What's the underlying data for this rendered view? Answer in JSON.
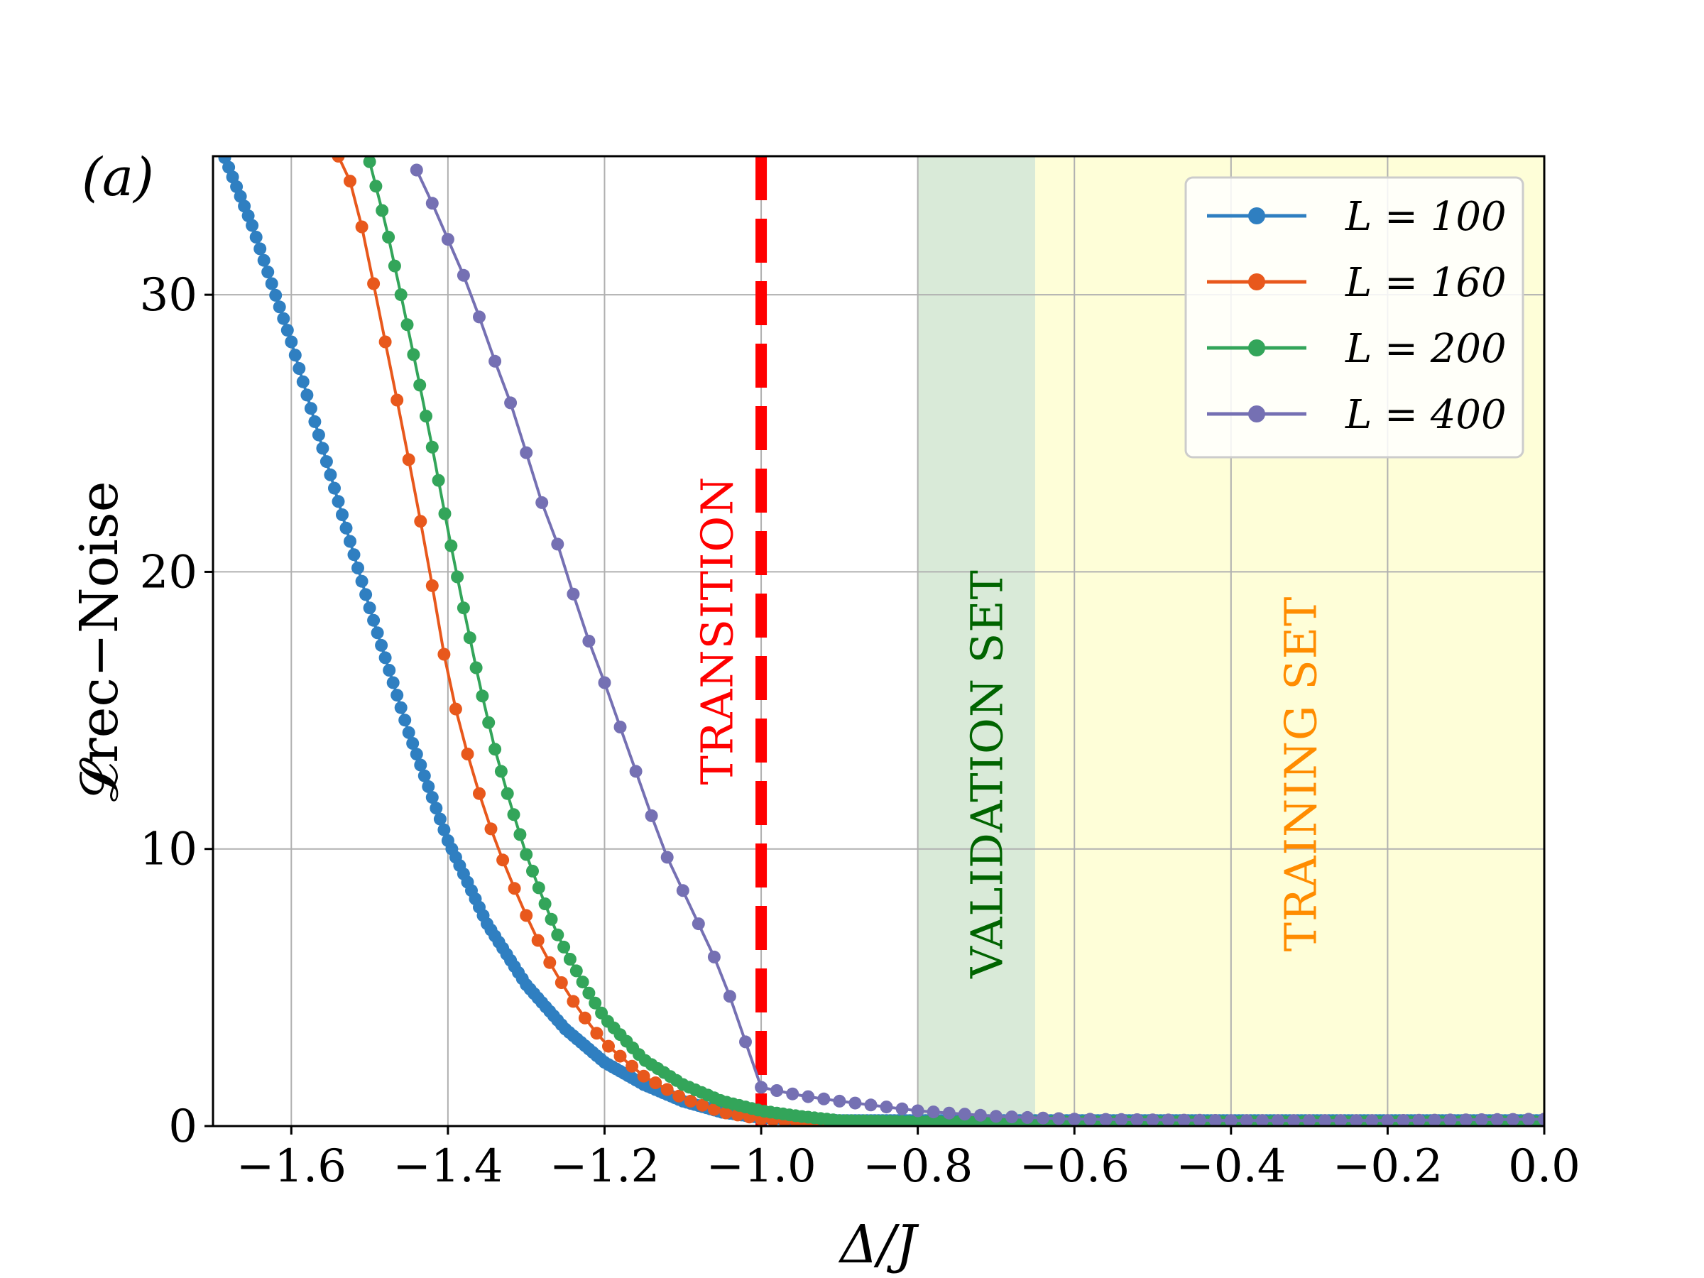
{
  "chart_data": {
    "type": "line",
    "panel_label": "(a)",
    "xlabel": "Δ/J",
    "ylabel": "𝓛rec−Noise",
    "xlim": [
      -1.7,
      0.0
    ],
    "ylim": [
      0,
      35
    ],
    "grid": true,
    "x_ticks": [
      -1.6,
      -1.4,
      -1.2,
      -1.0,
      -0.8,
      -0.6,
      -0.4,
      -0.2,
      0.0
    ],
    "x_tick_labels": [
      "−1.6",
      "−1.4",
      "−1.2",
      "−1.0",
      "−0.8",
      "−0.6",
      "−0.4",
      "−0.2",
      "0.0"
    ],
    "y_ticks": [
      0,
      10,
      20,
      30
    ],
    "y_tick_labels": [
      "0",
      "10",
      "20",
      "30"
    ],
    "transition": {
      "x": -1.0,
      "label": "TRANSITION",
      "color": "#ff0000"
    },
    "regions": [
      {
        "label": "VALIDATION SET",
        "x0": -0.8,
        "x1": -0.65,
        "fill": "#d9ead8",
        "text_color": "#006400"
      },
      {
        "label": "TRAINING SET",
        "x0": -0.65,
        "x1": 0.0,
        "fill": "#fefed8",
        "text_color": "#ff8c00"
      }
    ],
    "legend_position": "top-right",
    "series": [
      {
        "name": "L = 100",
        "color": "#2f7fc1",
        "step": 0.005,
        "x": [
          -1.7,
          -1.65,
          -1.6,
          -1.55,
          -1.5,
          -1.45,
          -1.4,
          -1.35,
          -1.3,
          -1.25,
          -1.2,
          -1.15,
          -1.1,
          -1.05,
          -1.0,
          -0.9,
          -0.8,
          -0.7,
          -0.6,
          -0.4,
          -0.2,
          0.0
        ],
        "y": [
          36,
          32.5,
          28.3,
          23.5,
          18.7,
          14.2,
          10.3,
          7.3,
          5.1,
          3.5,
          2.3,
          1.5,
          0.9,
          0.5,
          0.3,
          0.2,
          0.2,
          0.2,
          0.2,
          0.2,
          0.2,
          0.2
        ]
      },
      {
        "name": "L = 160",
        "color": "#e8581c",
        "step": 0.015,
        "x": [
          -1.54,
          -1.52,
          -1.5,
          -1.48,
          -1.46,
          -1.44,
          -1.42,
          -1.4,
          -1.38,
          -1.36,
          -1.34,
          -1.32,
          -1.3,
          -1.28,
          -1.26,
          -1.24,
          -1.22,
          -1.2,
          -1.15,
          -1.1,
          -1.05,
          -1.0,
          -0.95,
          -0.9,
          -0.8,
          -0.6,
          0.0
        ],
        "y": [
          35,
          33.8,
          31.1,
          28.3,
          25.5,
          22.6,
          19.5,
          16.2,
          13.9,
          12.0,
          10.3,
          8.9,
          7.6,
          6.4,
          5.4,
          4.5,
          3.7,
          3.0,
          1.8,
          1.0,
          0.5,
          0.25,
          0.15,
          0.1,
          0.1,
          0.1,
          0.1
        ]
      },
      {
        "name": "L = 200",
        "color": "#33a55a",
        "step": 0.008,
        "x": [
          -1.5,
          -1.48,
          -1.46,
          -1.44,
          -1.42,
          -1.4,
          -1.38,
          -1.36,
          -1.34,
          -1.32,
          -1.3,
          -1.28,
          -1.26,
          -1.24,
          -1.22,
          -1.2,
          -1.15,
          -1.1,
          -1.05,
          -1.0,
          -0.95,
          -0.9,
          -0.8,
          -0.6,
          0.0
        ],
        "y": [
          34.8,
          32.6,
          30.0,
          27.3,
          24.5,
          21.5,
          18.7,
          16.0,
          13.6,
          11.6,
          9.8,
          8.3,
          6.9,
          5.8,
          4.8,
          3.9,
          2.4,
          1.5,
          0.9,
          0.55,
          0.35,
          0.2,
          0.15,
          0.15,
          0.15
        ]
      },
      {
        "name": "L = 400",
        "color": "#7570b3",
        "step": 0.02,
        "x": [
          -1.44,
          -1.42,
          -1.4,
          -1.38,
          -1.36,
          -1.34,
          -1.32,
          -1.3,
          -1.28,
          -1.26,
          -1.24,
          -1.22,
          -1.2,
          -1.18,
          -1.16,
          -1.14,
          -1.12,
          -1.1,
          -1.05,
          -1.0,
          -0.95,
          -0.9,
          -0.8,
          -0.7,
          -0.6,
          -0.4,
          -0.2,
          0.0
        ],
        "y": [
          34.5,
          33.3,
          32.0,
          30.7,
          29.2,
          27.6,
          26.1,
          24.3,
          22.5,
          21.0,
          19.2,
          17.5,
          16.0,
          14.4,
          12.8,
          11.2,
          9.7,
          8.5,
          5.5,
          1.4,
          1.1,
          0.9,
          0.55,
          0.35,
          0.25,
          0.2,
          0.2,
          0.25
        ]
      }
    ]
  }
}
